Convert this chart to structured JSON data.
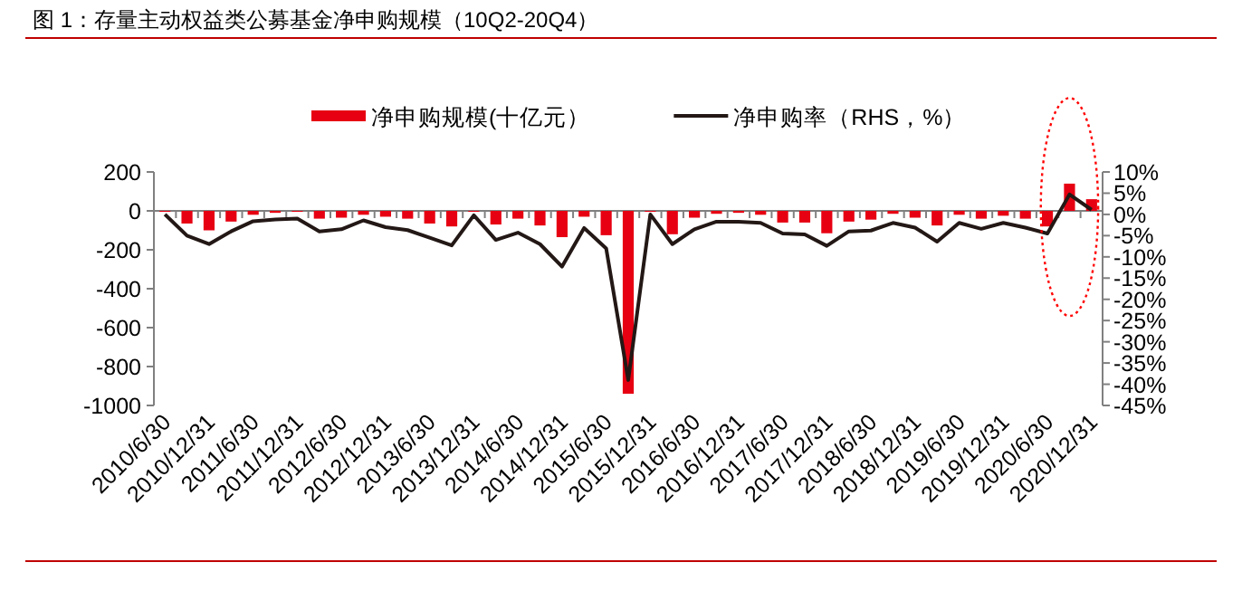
{
  "chart_data": {
    "type": "bar",
    "title": "图 1：存量主动权益类公募基金净申购规模（10Q2-20Q4）",
    "categories": [
      "2010/6/30",
      null,
      "2010/12/31",
      null,
      "2011/6/30",
      null,
      "2011/12/31",
      null,
      "2012/6/30",
      null,
      "2012/12/31",
      null,
      "2013/6/30",
      null,
      "2013/12/31",
      null,
      "2014/6/30",
      null,
      "2014/12/31",
      null,
      "2015/6/30",
      null,
      "2015/12/31",
      null,
      "2016/6/30",
      null,
      "2016/12/31",
      null,
      "2017/6/30",
      null,
      "2017/12/31",
      null,
      "2018/6/30",
      null,
      "2018/12/31",
      null,
      "2019/6/30",
      null,
      "2019/12/31",
      null,
      "2020/6/30",
      null,
      "2020/12/31"
    ],
    "series": [
      {
        "name": "净申购规模(十亿元）",
        "color": "#e60012",
        "values": [
          -5,
          -65,
          -100,
          -55,
          -20,
          -10,
          -5,
          -40,
          -35,
          -20,
          -30,
          -40,
          -65,
          -80,
          -5,
          -70,
          -40,
          -75,
          -135,
          -30,
          -125,
          -940,
          -5,
          -120,
          -35,
          -15,
          -10,
          -20,
          -60,
          -60,
          -115,
          -55,
          -45,
          -15,
          -35,
          -75,
          -20,
          -40,
          -25,
          -40,
          -80,
          140,
          60
        ]
      },
      {
        "name": "净申购率（RHS，%）",
        "type": "line",
        "axis": "y2",
        "color": "#231815",
        "values": [
          0,
          -5,
          -7,
          -4,
          -1.6,
          -1.2,
          -1,
          -4,
          -3.5,
          -1.4,
          -3,
          -3.7,
          -5.5,
          -7.3,
          -0.2,
          -6,
          -4.3,
          -7,
          -12.3,
          -3.2,
          -8,
          -39,
          0,
          -7,
          -3.5,
          -1.7,
          -1.7,
          -2,
          -4.5,
          -4.7,
          -7.4,
          -4,
          -3.8,
          -2,
          -3.1,
          -6.4,
          -2,
          -3.4,
          -2,
          -3.1,
          -4.5,
          4.7,
          1.1
        ]
      }
    ],
    "ylim": [
      -1000,
      200
    ],
    "yticks": [
      -1000,
      -800,
      -600,
      -400,
      -200,
      0,
      200
    ],
    "y2lim": [
      -45,
      10
    ],
    "y2ticks": [
      {
        "value": -45,
        "label": "-45%"
      },
      {
        "value": -40,
        "label": "-40%"
      },
      {
        "value": -35,
        "label": "-35%"
      },
      {
        "value": -30,
        "label": "-30%"
      },
      {
        "value": -25,
        "label": "-25%"
      },
      {
        "value": -20,
        "label": "-20%"
      },
      {
        "value": -15,
        "label": "-15%"
      },
      {
        "value": -10,
        "label": "-10%"
      },
      {
        "value": -5,
        "label": "-5%"
      },
      {
        "value": 0,
        "label": "0%"
      },
      {
        "value": 5,
        "label": "5%"
      },
      {
        "value": 10,
        "label": "10%"
      }
    ],
    "legend": "top"
  }
}
